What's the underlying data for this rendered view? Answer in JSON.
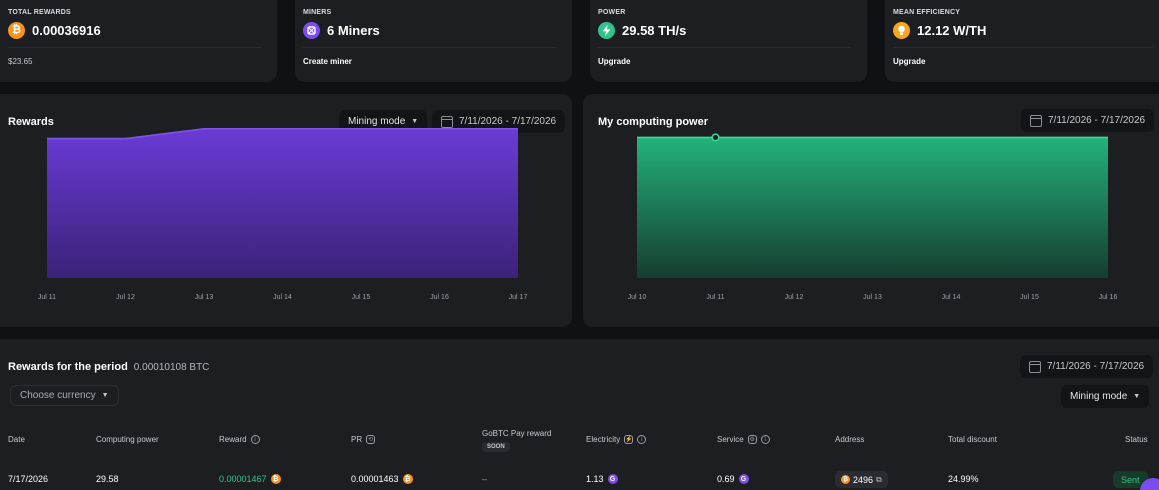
{
  "stats": [
    {
      "label": "TOTAL REWARDS",
      "value": "0.00036916",
      "sub": "$23.65",
      "icon": "bitcoin-icon",
      "color": "#f7931a"
    },
    {
      "label": "MINERS",
      "value": "6 Miners",
      "sub": "Create miner",
      "icon": "miner-icon",
      "color": "#7b4cf0"
    },
    {
      "label": "POWER",
      "value": "29.58 TH/s",
      "sub": "Upgrade",
      "icon": "lightning-icon",
      "color": "#2fc58a"
    },
    {
      "label": "MEAN EFFICIENCY",
      "value": "12.12 W/TH",
      "sub": "Upgrade",
      "icon": "bulb-icon",
      "color": "#f7a81a"
    }
  ],
  "rewards_panel": {
    "title": "Rewards",
    "mode_label": "Mining mode",
    "date_range": "7/11/2026 - 7/17/2026"
  },
  "power_panel": {
    "title": "My computing power",
    "date_range": "7/11/2026 - 7/17/2026"
  },
  "chart_data": [
    {
      "type": "area",
      "title": "Rewards",
      "x": [
        "Jul 11",
        "Jul 12",
        "Jul 13",
        "Jul 14",
        "Jul 15",
        "Jul 16",
        "Jul 17"
      ],
      "series": [
        {
          "values": [
            4.25e-05,
            4.25e-05,
            4.55e-05,
            4.55e-05,
            4.55e-05,
            4.55e-05,
            4.55e-05
          ]
        }
      ],
      "ylim": [
        0,
        5e-05
      ],
      "color": "#6a3bd6"
    },
    {
      "type": "area",
      "title": "My computing power",
      "x": [
        "Jul 10",
        "Jul 11",
        "Jul 12",
        "Jul 13",
        "Jul 14",
        "Jul 15",
        "Jul 16"
      ],
      "series": [
        {
          "values": [
            29.58,
            29.58,
            29.58,
            29.58,
            29.58,
            29.58,
            29.58
          ]
        }
      ],
      "ylim": [
        0,
        34.5
      ],
      "highlight_index": 1,
      "color": "#2fc58a"
    }
  ],
  "period": {
    "title": "Rewards for the period",
    "amount": "0.00010108 BTC",
    "date_range": "7/11/2026 - 7/17/2026",
    "currency_placeholder": "Choose currency",
    "mode_label": "Mining mode"
  },
  "table": {
    "headers": {
      "date": "Date",
      "power": "Computing power",
      "reward": "Reward",
      "pr": "PR",
      "gobtc": "GoBTC Pay reward",
      "soon": "SOON",
      "electricity": "Electricity",
      "service": "Service",
      "address": "Address",
      "discount": "Total discount",
      "status": "Status"
    },
    "rows": [
      {
        "date": "7/17/2026",
        "power": "29.58",
        "reward": "0.00001467",
        "pr": "0.00001463",
        "gobtc": "–",
        "electricity": "1.13",
        "service": "0.69",
        "address": "2496",
        "discount": "24.99%",
        "status": "Sent"
      }
    ]
  },
  "colors": {
    "accent_green": "#2fc58a",
    "accent_purple": "#6a3bd6",
    "bitcoin": "#f7931a",
    "status_sent": "#3ac086"
  }
}
